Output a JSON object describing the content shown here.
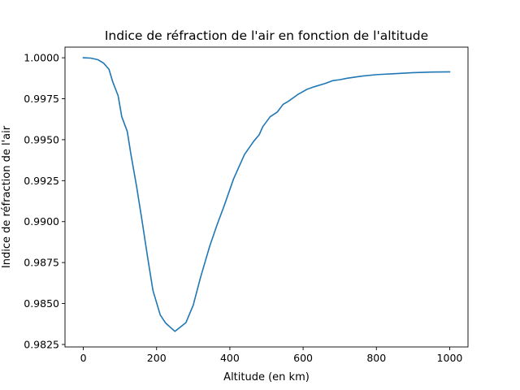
{
  "chart_data": {
    "type": "line",
    "title": "Indice de réfraction de l'air en fonction de l'altitude",
    "xlabel": "Altitude (en km)",
    "ylabel": "Indice de réfraction de l'air",
    "xlim": [
      -50,
      1050
    ],
    "ylim": [
      0.98235,
      1.00065
    ],
    "xticks": [
      0,
      200,
      400,
      600,
      800,
      1000
    ],
    "xtick_labels": [
      "0",
      "200",
      "400",
      "600",
      "800",
      "1000"
    ],
    "yticks": [
      0.9825,
      0.985,
      0.9875,
      0.99,
      0.9925,
      0.995,
      0.9975,
      1.0
    ],
    "ytick_labels": [
      "0.9825",
      "0.9850",
      "0.9875",
      "0.9900",
      "0.9925",
      "0.9950",
      "0.9975",
      "1.0000"
    ],
    "grid": false,
    "legend": "none",
    "color": "#1f77b4",
    "series": [
      {
        "x": [
          0,
          20,
          40,
          55,
          70,
          80,
          95,
          105,
          120,
          130,
          145,
          160,
          175,
          190,
          210,
          225,
          250,
          280,
          300,
          320,
          345,
          365,
          385,
          410,
          440,
          465,
          480,
          490,
          510,
          530,
          545,
          560,
          585,
          610,
          630,
          660,
          680,
          700,
          720,
          760,
          800,
          850,
          900,
          950,
          1000
        ],
        "y": [
          1.0,
          0.99998,
          0.99988,
          0.99968,
          0.9993,
          0.99855,
          0.99768,
          0.9964,
          0.9955,
          0.9941,
          0.9922,
          0.9901,
          0.9879,
          0.9858,
          0.9843,
          0.9838,
          0.9833,
          0.98383,
          0.9849,
          0.9866,
          0.9885,
          0.9898,
          0.991,
          0.9926,
          0.9941,
          0.9949,
          0.9953,
          0.9958,
          0.9964,
          0.9967,
          0.99715,
          0.99735,
          0.99775,
          0.99807,
          0.99823,
          0.99843,
          0.9986,
          0.99866,
          0.99875,
          0.99888,
          0.99897,
          0.99903,
          0.99909,
          0.99913,
          0.99914
        ]
      }
    ]
  }
}
